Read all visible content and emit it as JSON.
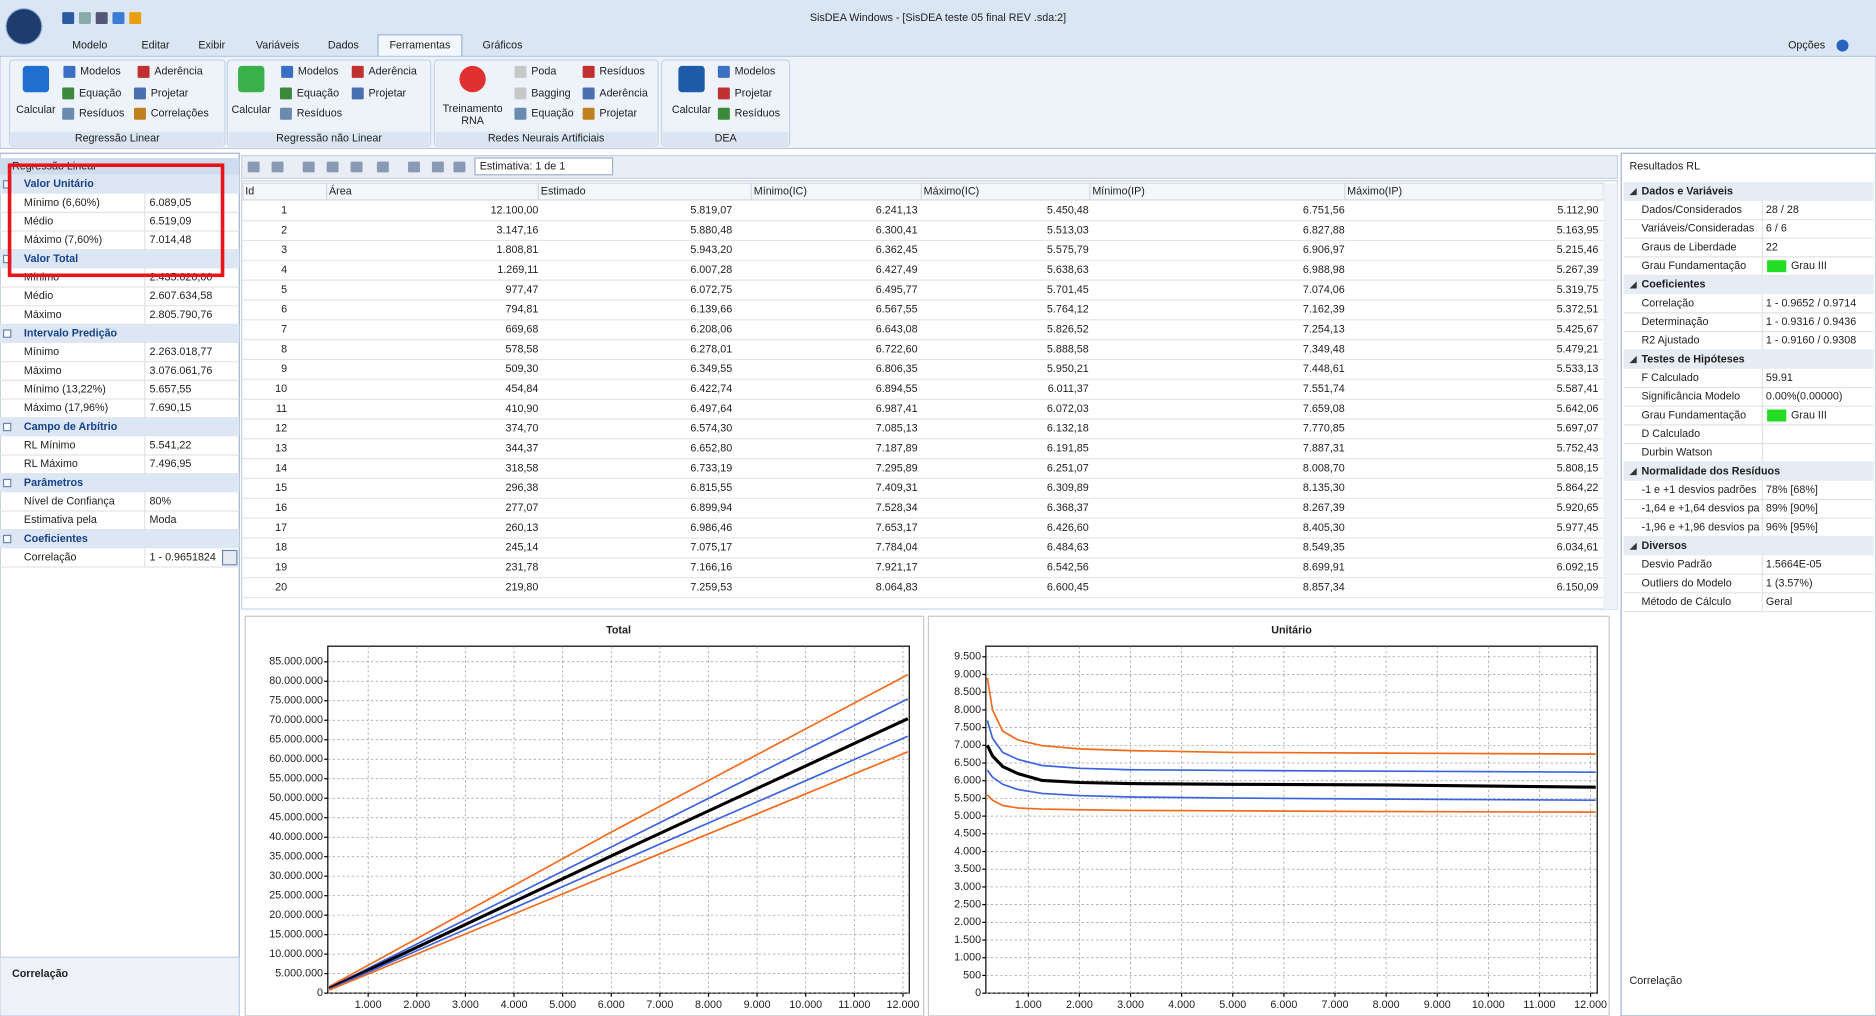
{
  "window": {
    "title": "SisDEA Windows - [SisDEA teste 05 final REV .sda:2]",
    "menu": [
      "Modelo",
      "Editar",
      "Exibir",
      "Variáveis",
      "Dados",
      "Ferramentas",
      "Gráficos"
    ],
    "options": "Opções"
  },
  "ribbon": {
    "groups": [
      {
        "label": "Regressão Linear",
        "big": [
          "Calcular"
        ],
        "small": [
          "Modelos",
          "Aderência",
          "Equação",
          "Projetar",
          "Resíduos",
          "Correlações"
        ]
      },
      {
        "label": "Regressão não Linear",
        "big": [
          "Calcular"
        ],
        "small": [
          "Modelos",
          "Aderência",
          "Equação",
          "Projetar",
          "Resíduos"
        ]
      },
      {
        "label": "Redes Neurais Artificiais",
        "big": [
          "Treinamento",
          "RNA"
        ],
        "small": [
          "Poda",
          "Resíduos",
          "Bagging",
          "Aderência",
          "Equação",
          "Projetar"
        ]
      },
      {
        "label": "DEA",
        "big": [
          "Calcular"
        ],
        "small": [
          "Modelos",
          "Projetar",
          "Resíduos"
        ]
      }
    ]
  },
  "left_panel": {
    "title": "Regressão Linear",
    "sections": [
      {
        "title": "Valor Unitário",
        "rows": [
          [
            "Mínimo (6,60%)",
            "6.089,05"
          ],
          [
            "Médio",
            "6.519,09"
          ],
          [
            "Máximo (7,60%)",
            "7.014,48"
          ]
        ]
      },
      {
        "title": "Valor Total",
        "rows": [
          [
            "Mínimo",
            "2.435.620,00"
          ],
          [
            "Médio",
            "2.607.634,58"
          ],
          [
            "Máximo",
            "2.805.790,76"
          ]
        ]
      },
      {
        "title": "Intervalo Predição",
        "rows": [
          [
            "Mínimo",
            "2.263.018,77"
          ],
          [
            "Máximo",
            "3.076.061,76"
          ],
          [
            "Mínimo (13,22%)",
            "5.657,55"
          ],
          [
            "Máximo (17,96%)",
            "7.690,15"
          ]
        ]
      },
      {
        "title": "Campo de Arbítrio",
        "rows": [
          [
            "RL Mínimo",
            "5.541,22"
          ],
          [
            "RL Máximo",
            "7.496,95"
          ]
        ]
      },
      {
        "title": "Parâmetros",
        "rows": [
          [
            "Nível de Confiança",
            "80%"
          ],
          [
            "Estimativa pela",
            "Moda"
          ]
        ]
      },
      {
        "title": "Coeficientes",
        "rows": [
          [
            "Correlação",
            "1 - 0.9651824"
          ]
        ]
      }
    ],
    "footer": "Correlação"
  },
  "toolbar": {
    "estimate": "Estimativa: 1 de 1"
  },
  "table": {
    "columns": [
      "Id",
      "Área",
      "Estimado",
      "Mínimo(IC)",
      "Máximo(IC)",
      "Mínimo(IP)",
      "Máximo(IP)"
    ],
    "rows": [
      [
        "1",
        "12.100,00",
        "5.819,07",
        "6.241,13",
        "5.450,48",
        "6.751,56",
        "5.112,90"
      ],
      [
        "2",
        "3.147,16",
        "5.880,48",
        "6.300,41",
        "5.513,03",
        "6.827,88",
        "5.163,95"
      ],
      [
        "3",
        "1.808,81",
        "5.943,20",
        "6.362,45",
        "5.575,79",
        "6.906,97",
        "5.215,46"
      ],
      [
        "4",
        "1.269,11",
        "6.007,28",
        "6.427,49",
        "5.638,63",
        "6.988,98",
        "5.267,39"
      ],
      [
        "5",
        "977,47",
        "6.072,75",
        "6.495,77",
        "5.701,45",
        "7.074,06",
        "5.319,75"
      ],
      [
        "6",
        "794,81",
        "6.139,66",
        "6.567,55",
        "5.764,12",
        "7.162,39",
        "5.372,51"
      ],
      [
        "7",
        "669,68",
        "6.208,06",
        "6.643,08",
        "5.826,52",
        "7.254,13",
        "5.425,67"
      ],
      [
        "8",
        "578,58",
        "6.278,01",
        "6.722,60",
        "5.888,58",
        "7.349,48",
        "5.479,21"
      ],
      [
        "9",
        "509,30",
        "6.349,55",
        "6.806,35",
        "5.950,21",
        "7.448,61",
        "5.533,13"
      ],
      [
        "10",
        "454,84",
        "6.422,74",
        "6.894,55",
        "6.011,37",
        "7.551,74",
        "5.587,41"
      ],
      [
        "11",
        "410,90",
        "6.497,64",
        "6.987,41",
        "6.072,03",
        "7.659,08",
        "5.642,06"
      ],
      [
        "12",
        "374,70",
        "6.574,30",
        "7.085,13",
        "6.132,18",
        "7.770,85",
        "5.697,07"
      ],
      [
        "13",
        "344,37",
        "6.652,80",
        "7.187,89",
        "6.191,85",
        "7.887,31",
        "5.752,43"
      ],
      [
        "14",
        "318,58",
        "6.733,19",
        "7.295,89",
        "6.251,07",
        "8.008,70",
        "5.808,15"
      ],
      [
        "15",
        "296,38",
        "6.815,55",
        "7.409,31",
        "6.309,89",
        "8.135,30",
        "5.864,22"
      ],
      [
        "16",
        "277,07",
        "6.899,94",
        "7.528,34",
        "6.368,37",
        "8.267,39",
        "5.920,65"
      ],
      [
        "17",
        "260,13",
        "6.986,46",
        "7.653,17",
        "6.426,60",
        "8.405,30",
        "5.977,45"
      ],
      [
        "18",
        "245,14",
        "7.075,17",
        "7.784,04",
        "6.484,63",
        "8.549,35",
        "6.034,61"
      ],
      [
        "19",
        "231,78",
        "7.166,16",
        "7.921,17",
        "6.542,56",
        "8.699,91",
        "6.092,15"
      ],
      [
        "20",
        "219,80",
        "7.259,53",
        "8.064,83",
        "6.600,45",
        "8.857,34",
        "6.150,09"
      ]
    ]
  },
  "charts": [
    {
      "type": "line",
      "title": "Total",
      "x": [
        200,
        6000,
        12100
      ],
      "series": [
        {
          "color": "#f26b1d",
          "values": [
            1700000,
            41300000,
            81700000
          ]
        },
        {
          "color": "#3b63e0",
          "values": [
            1400000,
            37500000,
            75500000
          ]
        },
        {
          "color": "#000000",
          "values": [
            1200000,
            35200000,
            70400000
          ]
        },
        {
          "color": "#3b63e0",
          "values": [
            1000000,
            32800000,
            65900000
          ]
        },
        {
          "color": "#f26b1d",
          "values": [
            800000,
            30600000,
            61900000
          ]
        }
      ],
      "xlim": [
        170,
        12130
      ],
      "ylim": [
        0,
        89000000
      ],
      "xticks": [
        {
          "value": 1000,
          "label": "1.000"
        },
        {
          "value": 2000,
          "label": "2.000"
        },
        {
          "value": 3000,
          "label": "3.000"
        },
        {
          "value": 4000,
          "label": "4.000"
        },
        {
          "value": 5000,
          "label": "5.000"
        },
        {
          "value": 6000,
          "label": "6.000"
        },
        {
          "value": 7000,
          "label": "7.000"
        },
        {
          "value": 8000,
          "label": "8.000"
        },
        {
          "value": 9000,
          "label": "9.000"
        },
        {
          "value": 10000,
          "label": "10.000"
        },
        {
          "value": 11000,
          "label": "11.000"
        },
        {
          "value": 12000,
          "label": "12.000"
        }
      ],
      "yticks": [
        0,
        {
          "value": 5000000,
          "label": "5.000.000"
        },
        {
          "value": 10000000,
          "label": "10.000.000"
        },
        {
          "value": 15000000,
          "label": "15.000.000"
        },
        {
          "value": 20000000,
          "label": "20.000.000"
        },
        {
          "value": 25000000,
          "label": "25.000.000"
        },
        {
          "value": 30000000,
          "label": "30.000.000"
        },
        {
          "value": 35000000,
          "label": "35.000.000"
        },
        {
          "value": 40000000,
          "label": "40.000.000"
        },
        {
          "value": 45000000,
          "label": "45.000.000"
        },
        {
          "value": 50000000,
          "label": "50.000.000"
        },
        {
          "value": 55000000,
          "label": "55.000.000"
        },
        {
          "value": 60000000,
          "label": "60.000.000"
        },
        {
          "value": 65000000,
          "label": "65.000.000"
        },
        {
          "value": 70000000,
          "label": "70.000.000"
        },
        {
          "value": 75000000,
          "label": "75.000.000"
        },
        {
          "value": 80000000,
          "label": "80.000.000"
        },
        {
          "value": 85000000,
          "label": "85.000.000"
        }
      ],
      "grid": true
    },
    {
      "type": "line",
      "title": "Unitário",
      "x": [
        200,
        300,
        500,
        800,
        1270,
        2000,
        3000,
        5000,
        8000,
        12100
      ],
      "series": [
        {
          "color": "#f26b1d",
          "values": [
            8900,
            8000,
            7400,
            7150,
            6990,
            6900,
            6850,
            6800,
            6780,
            6752
          ]
        },
        {
          "color": "#3b63e0",
          "values": [
            7700,
            7200,
            6800,
            6600,
            6430,
            6350,
            6310,
            6290,
            6270,
            6241
          ]
        },
        {
          "color": "#000000",
          "values": [
            7000,
            6700,
            6400,
            6200,
            6007,
            5950,
            5920,
            5900,
            5880,
            5819
          ]
        },
        {
          "color": "#3b63e0",
          "values": [
            6300,
            6100,
            5900,
            5750,
            5640,
            5580,
            5540,
            5510,
            5480,
            5450
          ]
        },
        {
          "color": "#f26b1d",
          "values": [
            5600,
            5450,
            5300,
            5230,
            5200,
            5180,
            5160,
            5150,
            5130,
            5113
          ]
        }
      ],
      "xlim": [
        170,
        12130
      ],
      "ylim": [
        0,
        9800
      ],
      "xticks": [
        {
          "value": 1000,
          "label": "1.000"
        },
        {
          "value": 2000,
          "label": "2.000"
        },
        {
          "value": 3000,
          "label": "3.000"
        },
        {
          "value": 4000,
          "label": "4.000"
        },
        {
          "value": 5000,
          "label": "5.000"
        },
        {
          "value": 6000,
          "label": "6.000"
        },
        {
          "value": 7000,
          "label": "7.000"
        },
        {
          "value": 8000,
          "label": "8.000"
        },
        {
          "value": 9000,
          "label": "9.000"
        },
        {
          "value": 10000,
          "label": "10.000"
        },
        {
          "value": 11000,
          "label": "11.000"
        },
        {
          "value": 12000,
          "label": "12.000"
        }
      ],
      "yticks": [
        0,
        500,
        {
          "value": 1000,
          "label": "1.000"
        },
        {
          "value": 1500,
          "label": "1.500"
        },
        {
          "value": 2000,
          "label": "2.000"
        },
        {
          "value": 2500,
          "label": "2.500"
        },
        {
          "value": 3000,
          "label": "3.000"
        },
        {
          "value": 3500,
          "label": "3.500"
        },
        {
          "value": 4000,
          "label": "4.000"
        },
        {
          "value": 4500,
          "label": "4.500"
        },
        {
          "value": 5000,
          "label": "5.000"
        },
        {
          "value": 5500,
          "label": "5.500"
        },
        {
          "value": 6000,
          "label": "6.000"
        },
        {
          "value": 6500,
          "label": "6.500"
        },
        {
          "value": 7000,
          "label": "7.000"
        },
        {
          "value": 7500,
          "label": "7.500"
        },
        {
          "value": 8000,
          "label": "8.000"
        },
        {
          "value": 8500,
          "label": "8.500"
        },
        {
          "value": 9000,
          "label": "9.000"
        },
        {
          "value": 9500,
          "label": "9.500"
        }
      ],
      "grid": true
    }
  ],
  "right_panel": {
    "title": "Resultados RL",
    "sections": [
      {
        "title": "Dados e Variáveis",
        "rows": [
          [
            "Dados/Considerados",
            "28 / 28"
          ],
          [
            "Variáveis/Consideradas",
            "6 / 6"
          ],
          [
            "Graus de Liberdade",
            "22"
          ],
          [
            "Grau Fundamentação",
            "Grau III"
          ]
        ]
      },
      {
        "title": "Coeficientes",
        "rows": [
          [
            "Correlação",
            "1 - 0.9652 / 0.9714"
          ],
          [
            "Determinação",
            "1 - 0.9316 / 0.9436"
          ],
          [
            "R2 Ajustado",
            "1 - 0.9160 / 0.9308"
          ]
        ]
      },
      {
        "title": "Testes de Hipóteses",
        "rows": [
          [
            "F Calculado",
            "59.91"
          ],
          [
            "Significância Modelo",
            "0.00%(0.00000)"
          ],
          [
            "Grau Fundamentação",
            "Grau III"
          ],
          [
            "D Calculado"
          ],
          [
            "Durbin Watson"
          ]
        ]
      },
      {
        "title": "Normalidade dos Resíduos",
        "rows": [
          [
            "-1 e +1 desvios padrões",
            "78% [68%]"
          ],
          [
            "-1,64 e +1,64 desvios pa",
            "89% [90%]"
          ],
          [
            "-1,96 e +1,96 desvios pa",
            "96% [95%]"
          ]
        ]
      },
      {
        "title": "Diversos",
        "rows": [
          [
            "Desvio Padrão",
            "1.5664E-05"
          ],
          [
            "Outliers do Modelo",
            "1  (3.57%)"
          ],
          [
            "Método de Cálculo",
            "Geral"
          ]
        ]
      }
    ],
    "footer": "Correlação"
  }
}
